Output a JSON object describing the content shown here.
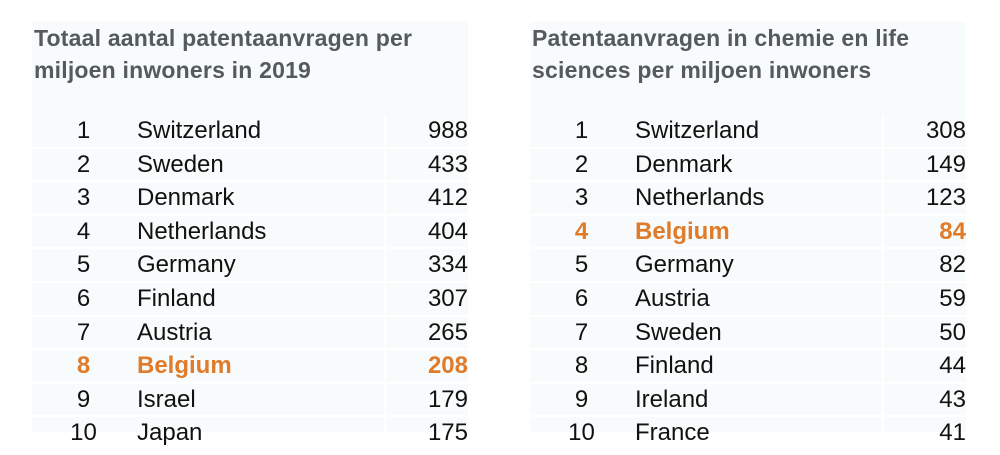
{
  "colors": {
    "highlight": "#e07b2a",
    "title": "#555a5d",
    "background": "#f7fbfb"
  },
  "chart_data": [
    {
      "type": "table",
      "title_lines": [
        "Totaal aantal patentaanvragen per",
        "miljoen inwoners in 2019"
      ],
      "highlight_rank": "8",
      "rows": [
        {
          "rank": "1",
          "country": "Switzerland",
          "value": "988"
        },
        {
          "rank": "2",
          "country": "Sweden",
          "value": "433"
        },
        {
          "rank": "3",
          "country": "Denmark",
          "value": "412"
        },
        {
          "rank": "4",
          "country": "Netherlands",
          "value": "404"
        },
        {
          "rank": "5",
          "country": "Germany",
          "value": "334"
        },
        {
          "rank": "6",
          "country": "Finland",
          "value": "307"
        },
        {
          "rank": "7",
          "country": "Austria",
          "value": "265"
        },
        {
          "rank": "8",
          "country": "Belgium",
          "value": "208"
        },
        {
          "rank": "9",
          "country": "Israel",
          "value": "179"
        },
        {
          "rank": "10",
          "country": "Japan",
          "value": "175"
        }
      ]
    },
    {
      "type": "table",
      "title_lines": [
        "Patentaanvragen in chemie en life",
        "sciences per miljoen inwoners"
      ],
      "highlight_rank": "4",
      "rows": [
        {
          "rank": "1",
          "country": "Switzerland",
          "value": "308"
        },
        {
          "rank": "2",
          "country": "Denmark",
          "value": "149"
        },
        {
          "rank": "3",
          "country": "Netherlands",
          "value": "123"
        },
        {
          "rank": "4",
          "country": "Belgium",
          "value": "84"
        },
        {
          "rank": "5",
          "country": "Germany",
          "value": "82"
        },
        {
          "rank": "6",
          "country": "Austria",
          "value": "59"
        },
        {
          "rank": "7",
          "country": "Sweden",
          "value": "50"
        },
        {
          "rank": "8",
          "country": "Finland",
          "value": "44"
        },
        {
          "rank": "9",
          "country": "Ireland",
          "value": "43"
        },
        {
          "rank": "10",
          "country": "France",
          "value": "41"
        }
      ]
    }
  ]
}
